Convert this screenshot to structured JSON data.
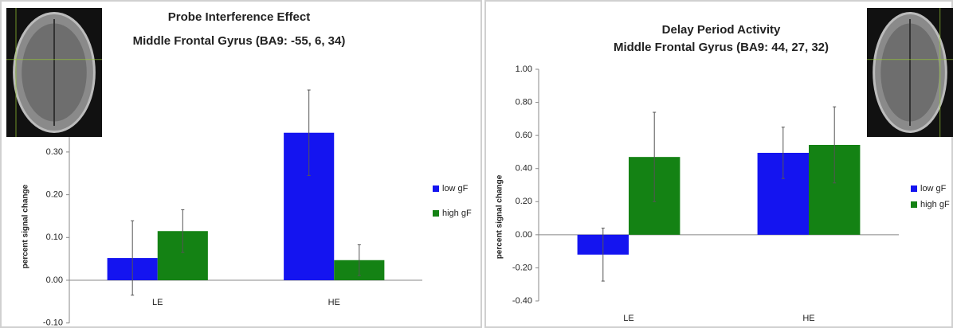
{
  "chart_data": [
    {
      "type": "bar",
      "title": "Probe Interference Effect",
      "subtitle": "Middle Frontal Gyrus (BA9: -55, 6, 34)",
      "y_label": "percent signal change",
      "categories": [
        "LE",
        "HE"
      ],
      "series": [
        {
          "name": "low gF",
          "color": "#1414f0",
          "values": [
            0.052,
            0.345
          ],
          "errors": [
            0.087,
            0.1
          ]
        },
        {
          "name": "high gF",
          "color": "#148214",
          "values": [
            0.115,
            0.047
          ],
          "errors": [
            0.05,
            0.036
          ]
        }
      ],
      "ylim": [
        -0.1,
        0.5
      ],
      "yticks": [
        {
          "value": -0.1,
          "label": "-0.10"
        },
        {
          "value": 0,
          "label": "0.00"
        },
        {
          "value": 0.1,
          "label": "0.10"
        },
        {
          "value": 0.2,
          "label": "0.20"
        },
        {
          "value": 0.3,
          "label": "0.30"
        }
      ],
      "legend": "right"
    },
    {
      "type": "bar",
      "title": "Delay Period Activity",
      "subtitle": "Middle Frontal Gyrus (BA9: 44, 27, 32)",
      "y_label": "percent signal change",
      "categories": [
        "LE",
        "HE"
      ],
      "series": [
        {
          "name": "low gF",
          "color": "#1414f0",
          "values": [
            -0.12,
            0.495
          ],
          "errors": [
            0.16,
            0.155
          ]
        },
        {
          "name": "high gF",
          "color": "#148214",
          "values": [
            0.47,
            0.543
          ],
          "errors": [
            0.27,
            0.23
          ]
        }
      ],
      "ylim": [
        -0.4,
        1.0
      ],
      "yticks": [
        {
          "value": -0.4,
          "label": "-0.40"
        },
        {
          "value": -0.2,
          "label": "-0.20"
        },
        {
          "value": 0,
          "label": "0.00"
        },
        {
          "value": 0.2,
          "label": "0.20"
        },
        {
          "value": 0.4,
          "label": "0.40"
        },
        {
          "value": 0.6,
          "label": "0.60"
        },
        {
          "value": 0.8,
          "label": "0.80"
        },
        {
          "value": 1.0,
          "label": "1.00"
        }
      ],
      "legend": "right"
    }
  ]
}
